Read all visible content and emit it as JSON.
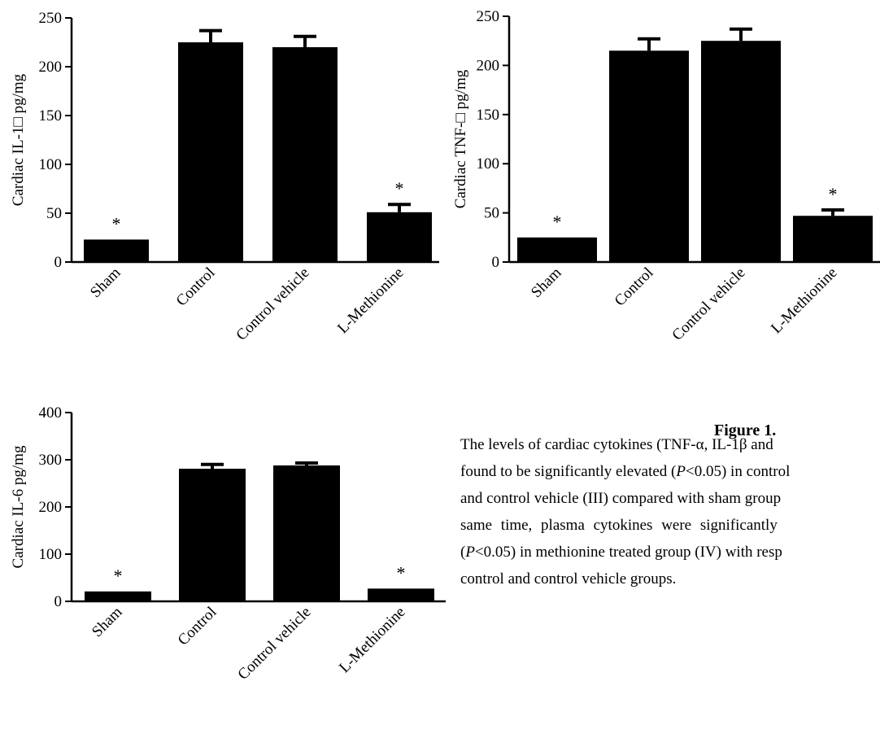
{
  "chart_data": [
    {
      "type": "bar",
      "ylabel": "Cardiac IL-1□ pg/mg",
      "categories": [
        "Sham",
        "Control",
        "Control vehicle",
        "L-Methionine"
      ],
      "values": [
        23,
        225,
        220,
        51
      ],
      "errors": [
        0,
        12,
        11,
        8
      ],
      "significance": [
        "*",
        "",
        "",
        "*"
      ],
      "ylim": [
        0,
        250
      ],
      "yticks": [
        "0",
        "50",
        "100",
        "150",
        "200",
        "250"
      ]
    },
    {
      "type": "bar",
      "ylabel": "Cardiac TNF-□ pg/mg",
      "categories": [
        "Sham",
        "Control",
        "Control vehicle",
        "L-Methionine"
      ],
      "values": [
        25,
        215,
        225,
        47
      ],
      "errors": [
        0,
        12,
        12,
        6
      ],
      "significance": [
        "*",
        "",
        "",
        "*"
      ],
      "ylim": [
        0,
        250
      ],
      "yticks": [
        "0",
        "50",
        "100",
        "150",
        "200",
        "250"
      ]
    },
    {
      "type": "bar",
      "ylabel": "Cardiac IL-6 pg/mg",
      "categories": [
        "Sham",
        "Control",
        "Control vehicle",
        "L-Methionine"
      ],
      "values": [
        21,
        281,
        288,
        27
      ],
      "errors": [
        0,
        9,
        5,
        0
      ],
      "significance": [
        "*",
        "",
        "",
        "*"
      ],
      "ylim": [
        0,
        400
      ],
      "yticks": [
        "0",
        "100",
        "200",
        "300",
        "400"
      ]
    }
  ],
  "caption": {
    "title": "Figure 1.",
    "line1_a": "The levels of cardiac cytokines (TNF-α, IL-1β and",
    "line2_a": "found to be significantly elevated (",
    "line2_p": "P",
    "line2_b": "<0.05) in control",
    "line3": "and control vehicle (III) compared with sham group",
    "line4": "same time, plasma cytokines were significantly",
    "line5_a": "(",
    "line5_p": "P",
    "line5_b": "<0.05) in methionine treated group (IV) with resp",
    "line6": "control and control vehicle groups."
  }
}
